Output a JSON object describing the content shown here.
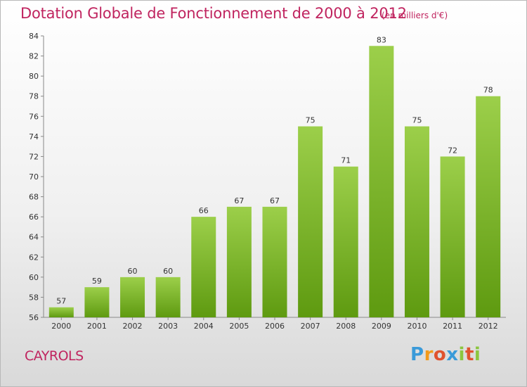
{
  "title": "Dotation Globale de Fonctionnement de 2000 à 2012",
  "subtitle": "(en milliers d'€)",
  "commune": "CAYROLS",
  "logo": "Proxiti",
  "chart_data": {
    "type": "bar",
    "title": "Dotation Globale de Fonctionnement de 2000 à 2012",
    "subtitle": "(en milliers d'€)",
    "categories": [
      "2000",
      "2001",
      "2002",
      "2003",
      "2004",
      "2005",
      "2006",
      "2007",
      "2008",
      "2009",
      "2010",
      "2011",
      "2012"
    ],
    "values": [
      57,
      59,
      60,
      60,
      66,
      67,
      67,
      75,
      71,
      83,
      75,
      72,
      78
    ],
    "ylim": [
      56,
      84
    ],
    "yticks": [
      56,
      58,
      60,
      62,
      64,
      66,
      68,
      70,
      72,
      74,
      76,
      78,
      80,
      82,
      84
    ],
    "grid": false,
    "colors": {
      "bar_top": "#9ccf4a",
      "bar_bottom": "#5e9a10",
      "text_accent": "#c0245f"
    }
  }
}
